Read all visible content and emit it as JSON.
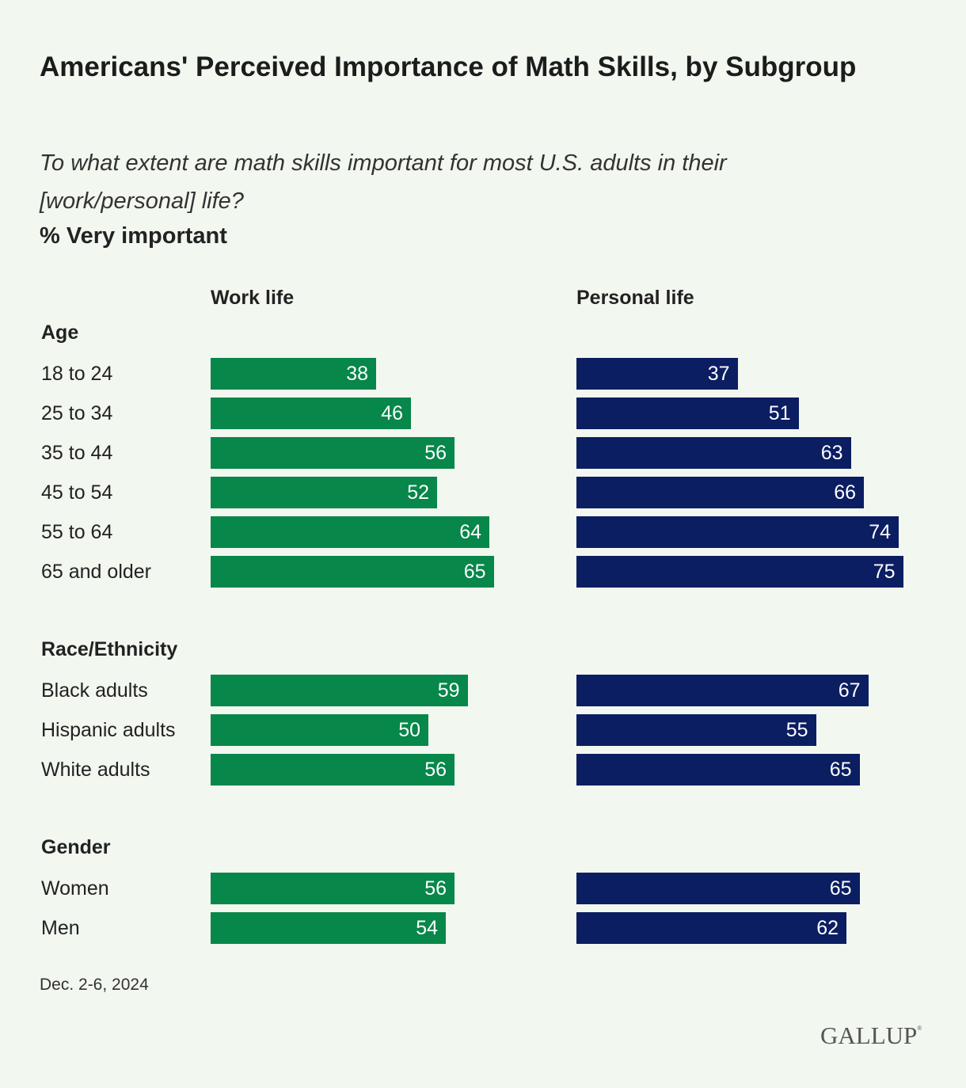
{
  "chart_data": {
    "type": "bar",
    "title": "Americans' Perceived Importance of Math Skills, by Subgroup",
    "subtitle": "To what extent are math skills important for most U.S. adults in their [work/personal] life?",
    "measure": "% Very important",
    "series": [
      {
        "name": "Work life",
        "color": "#07874a"
      },
      {
        "name": "Personal life",
        "color": "#0b1e62"
      }
    ],
    "xlim": [
      0,
      100
    ],
    "groups": [
      {
        "name": "Age",
        "rows": [
          {
            "label": "18 to 24",
            "values": [
              38,
              37
            ]
          },
          {
            "label": "25 to 34",
            "values": [
              46,
              51
            ]
          },
          {
            "label": "35 to 44",
            "values": [
              56,
              63
            ]
          },
          {
            "label": "45 to 54",
            "values": [
              52,
              66
            ]
          },
          {
            "label": "55 to 64",
            "values": [
              64,
              74
            ]
          },
          {
            "label": "65 and older",
            "values": [
              65,
              75
            ]
          }
        ]
      },
      {
        "name": "Race/Ethnicity",
        "rows": [
          {
            "label": "Black adults",
            "values": [
              59,
              67
            ]
          },
          {
            "label": "Hispanic adults",
            "values": [
              50,
              55
            ]
          },
          {
            "label": "White adults",
            "values": [
              56,
              65
            ]
          }
        ]
      },
      {
        "name": "Gender",
        "rows": [
          {
            "label": "Women",
            "values": [
              56,
              65
            ]
          },
          {
            "label": "Men",
            "values": [
              54,
              62
            ]
          }
        ]
      }
    ]
  },
  "footer": {
    "date": "Dec. 2-6, 2024",
    "logo": "GALLUP"
  }
}
